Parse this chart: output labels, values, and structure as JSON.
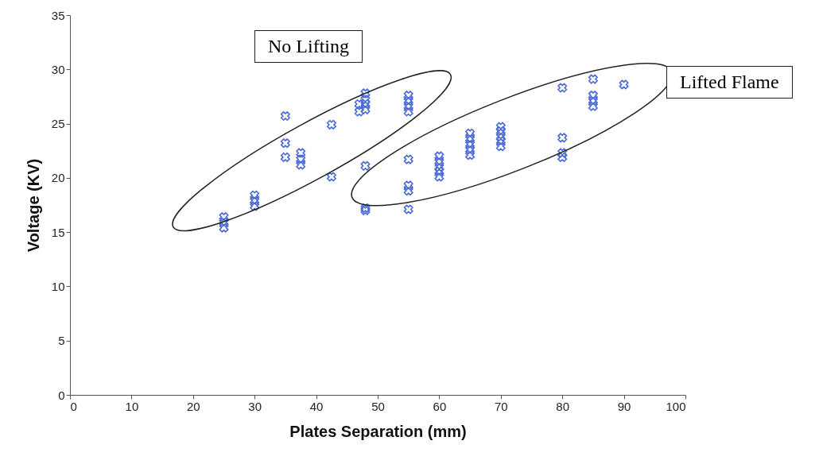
{
  "chart_data": {
    "type": "scatter",
    "xlabel": "Plates Separation (mm)",
    "ylabel": "Voltage (KV)",
    "xlim": [
      0,
      100
    ],
    "ylim": [
      0,
      35
    ],
    "xticks": [
      0,
      10,
      20,
      30,
      40,
      50,
      60,
      70,
      80,
      90,
      100
    ],
    "yticks": [
      0,
      5,
      10,
      15,
      20,
      25,
      30,
      35
    ],
    "grid": false,
    "marker": "cross",
    "annotations": [
      "No Lifting",
      "Lifted Flame"
    ],
    "series": [
      {
        "color": "#4a6ad8",
        "x": [
          25,
          25,
          25,
          30,
          30,
          30,
          35,
          35,
          35,
          37.5,
          37.5,
          37.5,
          42.5,
          42.5,
          47,
          47,
          48,
          48,
          48,
          48,
          48,
          48,
          48,
          55,
          55,
          55,
          55,
          55,
          55,
          55,
          55,
          60,
          60,
          60,
          60,
          60,
          65,
          65,
          65,
          65,
          65,
          70,
          70,
          70,
          70,
          70,
          80,
          80,
          80,
          80,
          85,
          85,
          85,
          85,
          90
        ],
        "values": [
          16.4,
          15.9,
          15.4,
          18.4,
          17.9,
          17.4,
          25.7,
          23.2,
          21.9,
          22.3,
          21.7,
          21.2,
          24.9,
          20.1,
          26.8,
          26.1,
          27.8,
          27.2,
          26.8,
          26.3,
          21.1,
          17.2,
          17.0,
          27.6,
          27.1,
          26.6,
          26.1,
          21.7,
          19.3,
          18.8,
          17.1,
          22.0,
          21.5,
          21.0,
          20.6,
          20.1,
          24.1,
          23.6,
          23.1,
          22.6,
          22.1,
          24.7,
          24.3,
          23.8,
          23.4,
          22.9,
          28.3,
          23.7,
          22.3,
          21.9,
          29.1,
          27.6,
          27.1,
          26.6,
          28.6
        ]
      }
    ]
  }
}
